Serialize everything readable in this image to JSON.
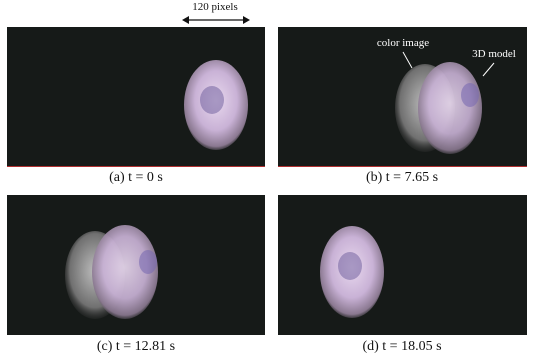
{
  "scale_label": "120 pixels",
  "panels": [
    {
      "caption": "(a)  t = 0 s"
    },
    {
      "caption": "(b)  t = 7.65 s",
      "annotations": [
        "color image",
        "3D model"
      ]
    },
    {
      "caption": "(c)  t = 12.81 s"
    },
    {
      "caption": "(d)  t = 18.05 s"
    }
  ]
}
